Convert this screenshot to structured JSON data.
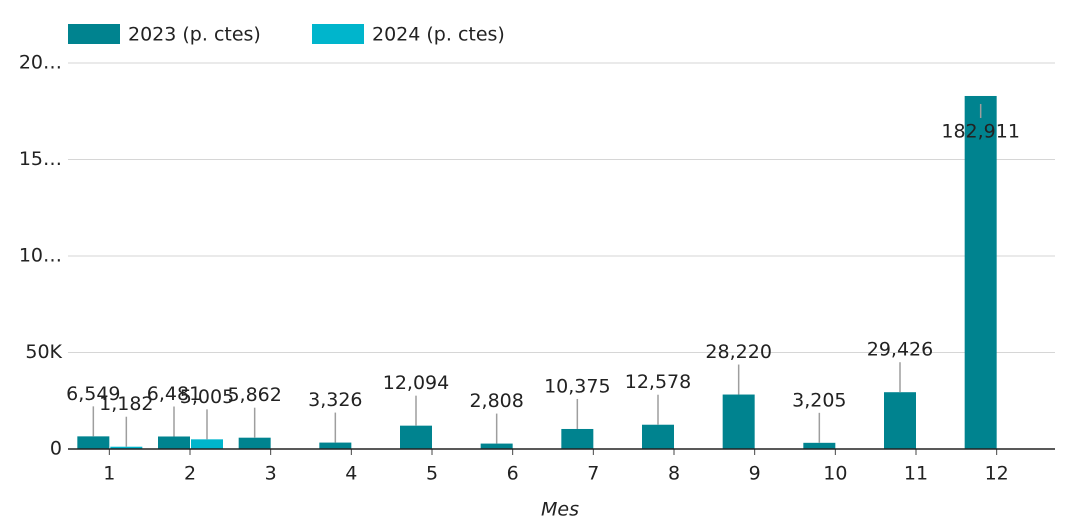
{
  "chart_data": {
    "type": "bar",
    "x_label": "Mes",
    "categories": [
      "1",
      "2",
      "3",
      "4",
      "5",
      "6",
      "7",
      "8",
      "9",
      "10",
      "11",
      "12"
    ],
    "series": [
      {
        "name": "2023 (p. ctes)",
        "color": "#00838f",
        "values": [
          6549,
          6481,
          5862,
          3326,
          12094,
          2808,
          10375,
          12578,
          28220,
          3205,
          29426,
          182911
        ],
        "value_labels": [
          "6,549",
          "6,481",
          "5,862",
          "3,326",
          "12,094",
          "2,808",
          "10,375",
          "12,578",
          "28,220",
          "3,205",
          "29,426",
          "182,911"
        ]
      },
      {
        "name": "2024 (p. ctes)",
        "color": "#00b5cc",
        "values": [
          1182,
          5005,
          null,
          null,
          null,
          null,
          null,
          null,
          null,
          null,
          null,
          null
        ],
        "value_labels": [
          "1,182",
          "5,005",
          null,
          null,
          null,
          null,
          null,
          null,
          null,
          null,
          null,
          null
        ]
      }
    ],
    "ylim": [
      0,
      200000
    ],
    "yticks": [
      0,
      {
        "value": 50000,
        "label": "50K"
      },
      {
        "value": 100000,
        "label": "10…"
      },
      {
        "value": 150000,
        "label": "15…"
      },
      {
        "value": 200000,
        "label": "20…"
      }
    ],
    "grid": true,
    "legend": "top"
  }
}
